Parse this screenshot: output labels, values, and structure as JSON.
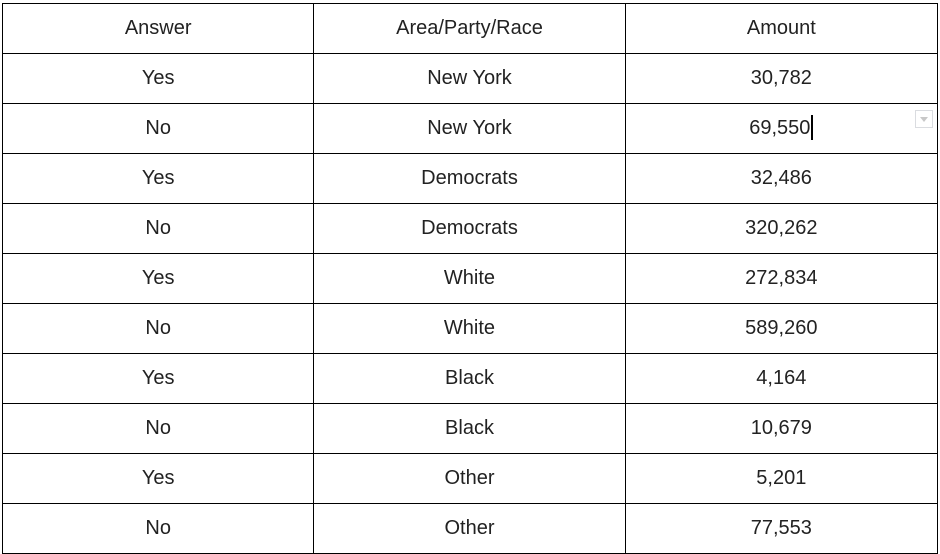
{
  "table": {
    "headers": [
      "Answer",
      "Area/Party/Race",
      "Amount"
    ],
    "rows": [
      [
        "Yes",
        "New York",
        "30,782"
      ],
      [
        "No",
        "New York",
        "69,550"
      ],
      [
        "Yes",
        "Democrats",
        "32,486"
      ],
      [
        "No",
        "Democrats",
        "320,262"
      ],
      [
        "Yes",
        "White",
        "272,834"
      ],
      [
        "No",
        "White",
        "589,260"
      ],
      [
        "Yes",
        "Black",
        "4,164"
      ],
      [
        "No",
        "Black",
        "10,679"
      ],
      [
        "Yes",
        "Other",
        "5,201"
      ],
      [
        "No",
        "Other",
        "77,553"
      ]
    ]
  },
  "active_cell": {
    "row_index": 1,
    "column_index": 2,
    "icon": "chevron-down-icon"
  },
  "colors": {
    "border": "#000000",
    "text": "#222222",
    "dropdown_border": "#dadce0",
    "dropdown_caret": "#c8c8c8"
  }
}
